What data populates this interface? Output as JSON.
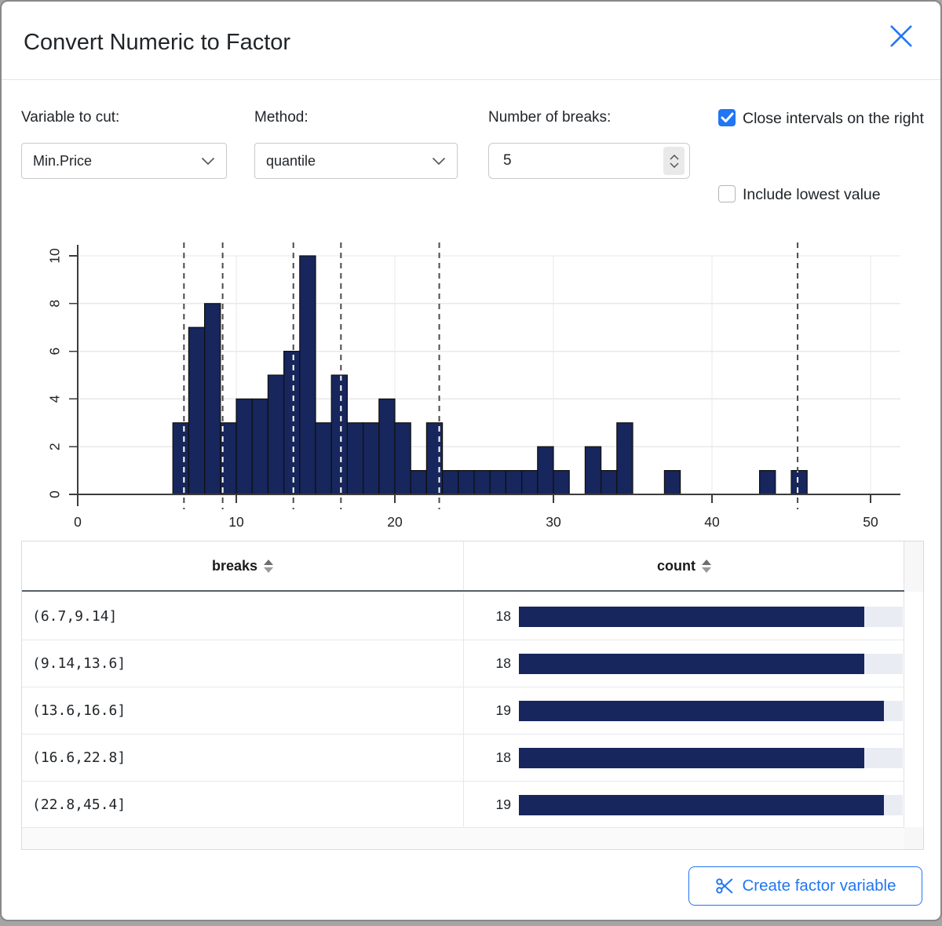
{
  "colors": {
    "accent": "#2176f3",
    "navy": "#17265c"
  },
  "dialog": {
    "title": "Convert Numeric to Factor"
  },
  "controls": {
    "variable": {
      "label": "Variable to cut:",
      "value": "Min.Price"
    },
    "method": {
      "label": "Method:",
      "value": "quantile"
    },
    "num_breaks": {
      "label": "Number of breaks:",
      "value": "5"
    },
    "close_intervals": {
      "label": "Close intervals on the right",
      "checked": true
    },
    "include_lowest": {
      "label": "Include lowest value",
      "checked": false
    }
  },
  "chart_data": {
    "type": "bar",
    "subtype": "histogram",
    "bin_start": 6,
    "bin_width": 1,
    "counts": [
      3,
      7,
      8,
      3,
      4,
      4,
      5,
      6,
      10,
      3,
      5,
      3,
      3,
      4,
      3,
      1,
      3,
      1,
      1,
      1,
      1,
      1,
      1,
      2,
      1,
      0,
      2,
      1,
      3,
      0,
      0,
      1,
      0,
      0,
      0,
      0,
      0,
      1,
      0,
      1
    ],
    "break_lines": [
      6.7,
      9.14,
      13.6,
      16.6,
      22.8,
      45.4
    ],
    "x_ticks": [
      0,
      10,
      20,
      30,
      40,
      50
    ],
    "y_ticks": [
      0,
      2,
      4,
      6,
      8,
      10
    ],
    "xlim": [
      0,
      52
    ],
    "ylim": [
      0,
      10
    ],
    "grid": true,
    "title": "",
    "xlabel": "",
    "ylabel": ""
  },
  "table": {
    "columns": [
      {
        "label": "breaks"
      },
      {
        "label": "count"
      }
    ],
    "rows": [
      {
        "breaks": "(6.7,9.14]",
        "count": 18
      },
      {
        "breaks": "(9.14,13.6]",
        "count": 18
      },
      {
        "breaks": "(13.6,16.6]",
        "count": 19
      },
      {
        "breaks": "(16.6,22.8]",
        "count": 18
      },
      {
        "breaks": "(22.8,45.4]",
        "count": 19
      }
    ],
    "bar_scale_max": 20
  },
  "footer": {
    "create_button": "Create factor variable"
  }
}
